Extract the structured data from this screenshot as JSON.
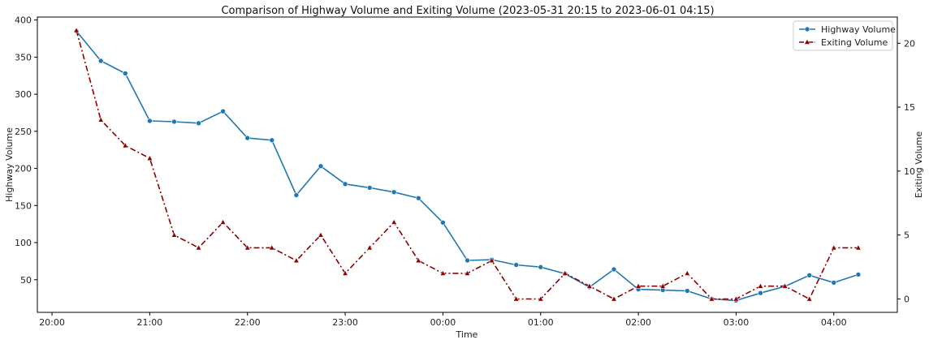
{
  "chart_data": {
    "type": "line",
    "title": "Comparison of Highway Volume and Exiting Volume (2023-05-31 20:15 to 2023-06-01 04:15)",
    "xlabel": "Time",
    "ylabel": "Highway Volume",
    "y2label": "Exiting Volume",
    "x": [
      "2023-05-31 20:15",
      "2023-05-31 20:30",
      "2023-05-31 20:45",
      "2023-05-31 21:00",
      "2023-05-31 21:15",
      "2023-05-31 21:30",
      "2023-05-31 21:45",
      "2023-05-31 22:00",
      "2023-05-31 22:15",
      "2023-05-31 22:30",
      "2023-05-31 22:45",
      "2023-05-31 23:00",
      "2023-05-31 23:15",
      "2023-05-31 23:30",
      "2023-05-31 23:45",
      "2023-06-01 00:00",
      "2023-06-01 00:15",
      "2023-06-01 00:30",
      "2023-06-01 00:45",
      "2023-06-01 01:00",
      "2023-06-01 01:15",
      "2023-06-01 01:30",
      "2023-06-01 01:45",
      "2023-06-01 02:00",
      "2023-06-01 02:15",
      "2023-06-01 02:30",
      "2023-06-01 02:45",
      "2023-06-01 03:00",
      "2023-06-01 03:15",
      "2023-06-01 03:30",
      "2023-06-01 03:45",
      "2023-06-01 04:00",
      "2023-06-01 04:15"
    ],
    "x_range": [
      "2023-05-31 19:51",
      "2023-06-01 04:39"
    ],
    "x_ticks": [
      "20:00",
      "21:00",
      "22:00",
      "23:00",
      "00:00",
      "01:00",
      "02:00",
      "03:00",
      "04:00"
    ],
    "ylim": [
      6,
      404
    ],
    "y_ticks": [
      50,
      100,
      150,
      200,
      250,
      300,
      350,
      400
    ],
    "y2lim": [
      -1.05,
      22.05
    ],
    "y2_ticks": [
      0,
      5,
      10,
      15,
      20
    ],
    "grid": false,
    "legend_position": "top-right",
    "series": [
      {
        "name": "Highway Volume",
        "axis": "left",
        "color": "#1f77b4",
        "line_style": "solid",
        "marker": "circle",
        "values": [
          385,
          345,
          328,
          264,
          263,
          261,
          277,
          241,
          238,
          164,
          203,
          179,
          174,
          168,
          160,
          127,
          76,
          77,
          70,
          67,
          58,
          40,
          64,
          37,
          36,
          35,
          24,
          22,
          32,
          41,
          56,
          46,
          57
        ]
      },
      {
        "name": "Exiting Volume",
        "axis": "right",
        "color": "#8b0000",
        "line_style": "dashdot",
        "marker": "triangle",
        "values": [
          21,
          14,
          12,
          11,
          5,
          4,
          6,
          4,
          4,
          3,
          5,
          2,
          4,
          6,
          3,
          2,
          2,
          3,
          0,
          0,
          2,
          1,
          0,
          1,
          1,
          2,
          0,
          0,
          1,
          1,
          0,
          4,
          4
        ]
      }
    ]
  }
}
